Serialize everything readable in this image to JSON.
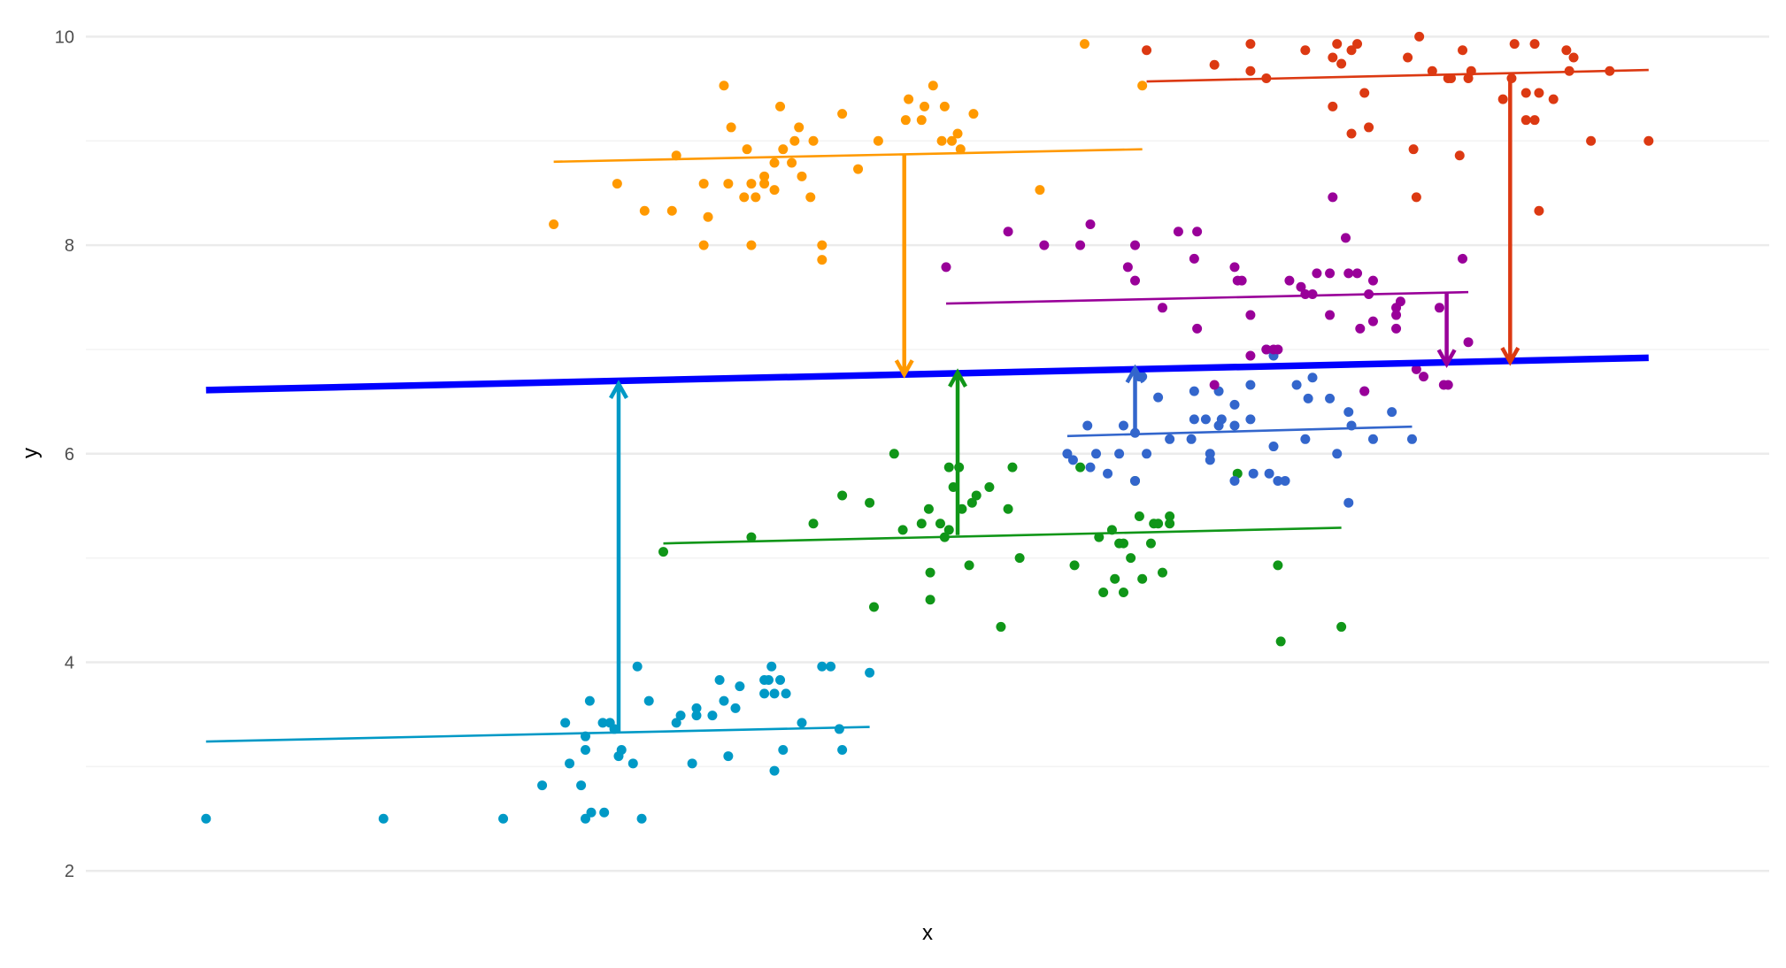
{
  "chart_data": {
    "type": "scatter",
    "title": "",
    "xlabel": "x",
    "ylabel": "y",
    "ylim": [
      2,
      10
    ],
    "xlim": [
      0,
      10
    ],
    "yticks": [
      "2",
      "4",
      "6",
      "8",
      "10"
    ],
    "grid": true,
    "overall_line": {
      "color": "#0000ff",
      "x": [
        0,
        10
      ],
      "y": [
        6.61,
        6.92
      ]
    },
    "groups": [
      {
        "name": "cyan",
        "color": "#0099c6",
        "fit": {
          "x": [
            0,
            4.6
          ],
          "y": [
            3.24,
            3.38
          ]
        },
        "arrow": {
          "x": 2.86,
          "from": 3.33,
          "to": 6.67
        },
        "points": [
          [
            0,
            2.5
          ],
          [
            1.23,
            2.5
          ],
          [
            2.06,
            2.5
          ],
          [
            2.63,
            2.5
          ],
          [
            2.67,
            2.56
          ],
          [
            2.76,
            2.56
          ],
          [
            3.02,
            2.5
          ],
          [
            2.33,
            2.82
          ],
          [
            2.6,
            2.82
          ],
          [
            2.52,
            3.03
          ],
          [
            2.63,
            3.16
          ],
          [
            2.86,
            3.1
          ],
          [
            2.88,
            3.16
          ],
          [
            2.96,
            3.03
          ],
          [
            3.37,
            3.03
          ],
          [
            3.62,
            3.1
          ],
          [
            3.94,
            2.96
          ],
          [
            4.0,
            3.16
          ],
          [
            4.41,
            3.16
          ],
          [
            2.49,
            3.42
          ],
          [
            2.63,
            3.29
          ],
          [
            2.75,
            3.42
          ],
          [
            2.8,
            3.42
          ],
          [
            2.83,
            3.36
          ],
          [
            2.66,
            3.63
          ],
          [
            2.99,
            3.96
          ],
          [
            3.07,
            3.63
          ],
          [
            3.26,
            3.42
          ],
          [
            3.29,
            3.49
          ],
          [
            3.4,
            3.56
          ],
          [
            3.4,
            3.49
          ],
          [
            3.51,
            3.49
          ],
          [
            3.56,
            3.83
          ],
          [
            3.59,
            3.63
          ],
          [
            3.67,
            3.56
          ],
          [
            3.7,
            3.77
          ],
          [
            3.87,
            3.83
          ],
          [
            3.87,
            3.7
          ],
          [
            3.9,
            3.83
          ],
          [
            3.92,
            3.96
          ],
          [
            3.94,
            3.7
          ],
          [
            3.98,
            3.83
          ],
          [
            4.02,
            3.7
          ],
          [
            4.13,
            3.42
          ],
          [
            4.27,
            3.96
          ],
          [
            4.33,
            3.96
          ],
          [
            4.39,
            3.36
          ],
          [
            4.6,
            3.9
          ]
        ]
      },
      {
        "name": "green",
        "color": "#109618",
        "fit": {
          "x": [
            3.17,
            7.87
          ],
          "y": [
            5.14,
            5.29
          ]
        },
        "arrow": {
          "x": 5.21,
          "from": 5.22,
          "to": 6.78
        },
        "points": [
          [
            3.17,
            5.06
          ],
          [
            3.78,
            5.2
          ],
          [
            4.21,
            5.33
          ],
          [
            4.41,
            5.6
          ],
          [
            4.6,
            5.53
          ],
          [
            4.63,
            4.53
          ],
          [
            4.77,
            6.0
          ],
          [
            4.83,
            5.27
          ],
          [
            4.96,
            5.33
          ],
          [
            5.01,
            5.47
          ],
          [
            5.02,
            4.86
          ],
          [
            5.02,
            4.6
          ],
          [
            5.09,
            5.33
          ],
          [
            5.12,
            5.2
          ],
          [
            5.15,
            5.27
          ],
          [
            5.15,
            5.87
          ],
          [
            5.18,
            5.68
          ],
          [
            5.22,
            5.87
          ],
          [
            5.24,
            5.47
          ],
          [
            5.29,
            4.93
          ],
          [
            5.31,
            5.53
          ],
          [
            5.34,
            5.6
          ],
          [
            5.43,
            5.68
          ],
          [
            5.51,
            4.34
          ],
          [
            5.56,
            5.47
          ],
          [
            5.59,
            5.87
          ],
          [
            5.64,
            5.0
          ],
          [
            6.02,
            4.93
          ],
          [
            6.06,
            5.87
          ],
          [
            6.19,
            5.2
          ],
          [
            6.22,
            4.67
          ],
          [
            6.28,
            5.27
          ],
          [
            6.3,
            4.8
          ],
          [
            6.33,
            5.14
          ],
          [
            6.36,
            4.67
          ],
          [
            6.36,
            5.14
          ],
          [
            6.41,
            5.0
          ],
          [
            6.44,
            5.74
          ],
          [
            6.47,
            5.4
          ],
          [
            6.49,
            4.8
          ],
          [
            6.55,
            5.14
          ],
          [
            6.57,
            5.33
          ],
          [
            6.6,
            5.33
          ],
          [
            6.63,
            4.86
          ],
          [
            6.68,
            5.4
          ],
          [
            6.68,
            5.33
          ],
          [
            7.15,
            5.81
          ],
          [
            7.43,
            4.93
          ],
          [
            7.45,
            4.2
          ],
          [
            7.87,
            4.34
          ]
        ]
      },
      {
        "name": "blue",
        "color": "#3366cc",
        "fit": {
          "x": [
            5.97,
            8.36
          ],
          "y": [
            6.17,
            6.26
          ]
        },
        "arrow": {
          "x": 6.44,
          "from": 6.2,
          "to": 6.82
        },
        "points": [
          [
            5.97,
            6.0
          ],
          [
            6.01,
            5.94
          ],
          [
            6.11,
            6.27
          ],
          [
            6.13,
            5.87
          ],
          [
            6.17,
            6.0
          ],
          [
            6.25,
            5.81
          ],
          [
            6.33,
            6.0
          ],
          [
            6.36,
            6.27
          ],
          [
            6.44,
            6.2
          ],
          [
            6.44,
            5.74
          ],
          [
            6.47,
            6.74
          ],
          [
            6.49,
            6.74
          ],
          [
            6.52,
            6.0
          ],
          [
            6.6,
            6.54
          ],
          [
            6.68,
            6.14
          ],
          [
            6.83,
            6.14
          ],
          [
            6.85,
            6.33
          ],
          [
            6.85,
            6.6
          ],
          [
            6.93,
            6.33
          ],
          [
            6.96,
            6.0
          ],
          [
            6.96,
            5.94
          ],
          [
            7.02,
            6.27
          ],
          [
            7.02,
            6.6
          ],
          [
            7.04,
            6.33
          ],
          [
            7.13,
            6.47
          ],
          [
            7.13,
            6.27
          ],
          [
            7.13,
            5.74
          ],
          [
            7.24,
            6.33
          ],
          [
            7.26,
            5.81
          ],
          [
            7.24,
            6.66
          ],
          [
            7.37,
            5.81
          ],
          [
            7.4,
            6.07
          ],
          [
            7.4,
            6.94
          ],
          [
            7.43,
            5.74
          ],
          [
            7.48,
            5.74
          ],
          [
            7.56,
            6.66
          ],
          [
            7.62,
            6.14
          ],
          [
            7.64,
            6.53
          ],
          [
            7.67,
            6.73
          ],
          [
            7.79,
            6.53
          ],
          [
            7.84,
            6.0
          ],
          [
            7.92,
            5.53
          ],
          [
            7.92,
            6.4
          ],
          [
            7.94,
            6.27
          ],
          [
            8.03,
            6.6
          ],
          [
            8.09,
            6.14
          ],
          [
            8.22,
            6.4
          ],
          [
            8.36,
            6.14
          ],
          [
            7.35,
            7.0
          ]
        ]
      },
      {
        "name": "purple",
        "color": "#990099",
        "fit": {
          "x": [
            5.13,
            8.75
          ],
          "y": [
            7.44,
            7.55
          ]
        },
        "arrow": {
          "x": 8.6,
          "from": 7.55,
          "to": 6.86
        },
        "points": [
          [
            5.13,
            7.79
          ],
          [
            5.56,
            8.13
          ],
          [
            5.81,
            8.0
          ],
          [
            6.06,
            8.0
          ],
          [
            6.13,
            8.2
          ],
          [
            6.39,
            7.79
          ],
          [
            6.44,
            8.0
          ],
          [
            6.44,
            7.66
          ],
          [
            6.63,
            7.4
          ],
          [
            6.74,
            8.13
          ],
          [
            6.85,
            7.87
          ],
          [
            6.87,
            8.13
          ],
          [
            6.87,
            7.2
          ],
          [
            7.13,
            7.79
          ],
          [
            7.15,
            7.66
          ],
          [
            7.18,
            7.66
          ],
          [
            7.24,
            7.33
          ],
          [
            7.24,
            6.94
          ],
          [
            7.35,
            7.0
          ],
          [
            7.4,
            7.0
          ],
          [
            7.43,
            7.0
          ],
          [
            7.51,
            7.66
          ],
          [
            7.59,
            7.6
          ],
          [
            7.62,
            7.53
          ],
          [
            7.67,
            7.53
          ],
          [
            7.7,
            7.73
          ],
          [
            7.79,
            7.73
          ],
          [
            7.79,
            7.33
          ],
          [
            7.81,
            8.46
          ],
          [
            7.9,
            8.07
          ],
          [
            7.92,
            7.73
          ],
          [
            7.98,
            7.73
          ],
          [
            8.0,
            7.2
          ],
          [
            8.06,
            7.53
          ],
          [
            8.09,
            7.66
          ],
          [
            8.09,
            7.27
          ],
          [
            8.25,
            7.4
          ],
          [
            8.25,
            7.33
          ],
          [
            8.25,
            7.2
          ],
          [
            8.28,
            7.46
          ],
          [
            8.39,
            6.81
          ],
          [
            8.44,
            6.74
          ],
          [
            8.55,
            7.4
          ],
          [
            8.58,
            6.66
          ],
          [
            8.61,
            6.66
          ],
          [
            8.71,
            7.87
          ],
          [
            8.75,
            7.07
          ],
          [
            6.99,
            6.66
          ],
          [
            8.03,
            6.6
          ]
        ]
      },
      {
        "name": "orange",
        "color": "#ff9900",
        "fit": {
          "x": [
            2.41,
            6.49
          ],
          "y": [
            8.8,
            8.92
          ]
        },
        "arrow": {
          "x": 4.84,
          "from": 8.87,
          "to": 6.76
        },
        "points": [
          [
            2.41,
            8.2
          ],
          [
            2.85,
            8.59
          ],
          [
            3.04,
            8.33
          ],
          [
            3.23,
            8.33
          ],
          [
            3.26,
            8.86
          ],
          [
            3.45,
            8.59
          ],
          [
            3.45,
            8.0
          ],
          [
            3.48,
            8.27
          ],
          [
            3.59,
            9.53
          ],
          [
            3.62,
            8.59
          ],
          [
            3.64,
            9.13
          ],
          [
            3.75,
            8.92
          ],
          [
            3.78,
            8.59
          ],
          [
            3.78,
            8.0
          ],
          [
            3.81,
            8.46
          ],
          [
            3.87,
            8.59
          ],
          [
            3.87,
            8.66
          ],
          [
            3.94,
            8.53
          ],
          [
            3.94,
            8.79
          ],
          [
            3.98,
            9.33
          ],
          [
            4.0,
            8.92
          ],
          [
            4.06,
            8.79
          ],
          [
            4.11,
            9.13
          ],
          [
            4.13,
            8.66
          ],
          [
            4.19,
            8.46
          ],
          [
            4.21,
            9.0
          ],
          [
            4.27,
            8.0
          ],
          [
            4.27,
            7.86
          ],
          [
            4.41,
            9.26
          ],
          [
            4.52,
            8.73
          ],
          [
            4.66,
            9.0
          ],
          [
            4.85,
            9.2
          ],
          [
            4.87,
            9.4
          ],
          [
            4.96,
            9.2
          ],
          [
            4.98,
            9.33
          ],
          [
            5.04,
            9.53
          ],
          [
            5.12,
            9.33
          ],
          [
            5.1,
            9.0
          ],
          [
            5.17,
            9.0
          ],
          [
            5.21,
            9.07
          ],
          [
            5.23,
            8.92
          ],
          [
            5.32,
            9.26
          ],
          [
            5.78,
            8.53
          ],
          [
            6.09,
            9.93
          ],
          [
            6.49,
            9.53
          ],
          [
            4.08,
            9.0
          ],
          [
            3.73,
            8.46
          ]
        ]
      },
      {
        "name": "red",
        "color": "#dc3912",
        "fit": {
          "x": [
            6.52,
            10
          ],
          "y": [
            9.57,
            9.68
          ]
        },
        "arrow": {
          "x": 9.04,
          "from": 9.6,
          "to": 6.88
        },
        "points": [
          [
            6.52,
            9.87
          ],
          [
            6.99,
            9.73
          ],
          [
            7.24,
            9.93
          ],
          [
            7.24,
            9.67
          ],
          [
            7.35,
            9.6
          ],
          [
            7.62,
            9.87
          ],
          [
            7.81,
            9.33
          ],
          [
            7.81,
            9.8
          ],
          [
            7.84,
            9.93
          ],
          [
            7.87,
            9.74
          ],
          [
            7.94,
            9.87
          ],
          [
            7.98,
            9.93
          ],
          [
            7.94,
            9.07
          ],
          [
            8.03,
            9.46
          ],
          [
            8.06,
            9.13
          ],
          [
            8.33,
            9.8
          ],
          [
            8.37,
            8.92
          ],
          [
            8.39,
            8.46
          ],
          [
            8.41,
            10.0
          ],
          [
            8.5,
            9.67
          ],
          [
            8.61,
            9.6
          ],
          [
            8.63,
            9.6
          ],
          [
            8.69,
            8.86
          ],
          [
            8.71,
            9.87
          ],
          [
            8.75,
            9.6
          ],
          [
            8.77,
            9.67
          ],
          [
            8.99,
            9.4
          ],
          [
            9.05,
            9.6
          ],
          [
            9.07,
            9.93
          ],
          [
            9.15,
            9.46
          ],
          [
            9.15,
            9.2
          ],
          [
            9.21,
            9.93
          ],
          [
            9.21,
            9.2
          ],
          [
            9.24,
            9.46
          ],
          [
            9.24,
            8.33
          ],
          [
            9.34,
            9.4
          ],
          [
            9.43,
            9.87
          ],
          [
            9.45,
            9.67
          ],
          [
            9.48,
            9.8
          ],
          [
            9.6,
            9.0
          ],
          [
            9.73,
            9.67
          ],
          [
            10.0,
            9.0
          ]
        ]
      }
    ]
  }
}
